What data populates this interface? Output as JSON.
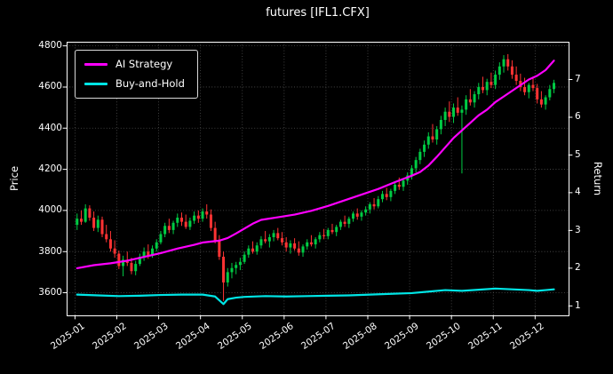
{
  "chart_data": {
    "type": "candlestick",
    "title": "futures [IFL1.CFX]",
    "ylabel_left": "Price",
    "ylabel_right": "Return",
    "legend_position": "upper left",
    "grid": true,
    "x_tick_labels": [
      "2025-01",
      "2025-02",
      "2025-03",
      "2025-04",
      "2025-05",
      "2025-06",
      "2025-07",
      "2025-08",
      "2025-09",
      "2025-10",
      "2025-11",
      "2025-12"
    ],
    "price_ticks": [
      3600,
      3800,
      4000,
      4200,
      4400,
      4600,
      4800
    ],
    "return_ticks": [
      1,
      2,
      3,
      4,
      5,
      6,
      7
    ],
    "price_ylim": [
      3490,
      4820
    ],
    "return_ylim": [
      0.75,
      8.0
    ],
    "candles_per_month": 10,
    "colors": {
      "background": "#000000",
      "frame": "#ffffff",
      "grid": "#4f4f4f",
      "up": "#00cc44",
      "down": "#ff3333"
    },
    "candles": [
      [
        3930,
        3985,
        3905,
        3960
      ],
      [
        3960,
        4000,
        3930,
        3945
      ],
      [
        3945,
        4030,
        3940,
        4010
      ],
      [
        4010,
        4025,
        3950,
        3965
      ],
      [
        3965,
        3995,
        3900,
        3915
      ],
      [
        3915,
        3975,
        3895,
        3955
      ],
      [
        3955,
        3970,
        3870,
        3885
      ],
      [
        3885,
        3930,
        3845,
        3860
      ],
      [
        3860,
        3900,
        3800,
        3815
      ],
      [
        3815,
        3855,
        3770,
        3790
      ],
      [
        3790,
        3805,
        3715,
        3730
      ],
      [
        3730,
        3780,
        3680,
        3760
      ],
      [
        3760,
        3800,
        3730,
        3745
      ],
      [
        3745,
        3770,
        3690,
        3705
      ],
      [
        3705,
        3755,
        3685,
        3740
      ],
      [
        3740,
        3790,
        3730,
        3775
      ],
      [
        3775,
        3820,
        3755,
        3800
      ],
      [
        3800,
        3835,
        3765,
        3780
      ],
      [
        3780,
        3830,
        3770,
        3815
      ],
      [
        3815,
        3860,
        3800,
        3845
      ],
      [
        3845,
        3900,
        3835,
        3885
      ],
      [
        3885,
        3940,
        3870,
        3925
      ],
      [
        3925,
        3960,
        3890,
        3905
      ],
      [
        3905,
        3950,
        3885,
        3940
      ],
      [
        3940,
        3985,
        3920,
        3965
      ],
      [
        3965,
        3990,
        3925,
        3945
      ],
      [
        3945,
        3980,
        3910,
        3920
      ],
      [
        3920,
        3965,
        3905,
        3950
      ],
      [
        3950,
        3995,
        3935,
        3975
      ],
      [
        3975,
        4000,
        3940,
        3960
      ],
      [
        3960,
        4010,
        3945,
        3995
      ],
      [
        3995,
        4030,
        3960,
        3980
      ],
      [
        3980,
        4005,
        3900,
        3915
      ],
      [
        3915,
        3945,
        3840,
        3855
      ],
      [
        3855,
        3880,
        3760,
        3775
      ],
      [
        3775,
        3800,
        3560,
        3650
      ],
      [
        3650,
        3720,
        3630,
        3700
      ],
      [
        3700,
        3745,
        3670,
        3720
      ],
      [
        3720,
        3750,
        3690,
        3735
      ],
      [
        3735,
        3770,
        3710,
        3750
      ],
      [
        3750,
        3800,
        3740,
        3785
      ],
      [
        3785,
        3830,
        3770,
        3815
      ],
      [
        3815,
        3850,
        3790,
        3800
      ],
      [
        3800,
        3845,
        3785,
        3830
      ],
      [
        3830,
        3875,
        3815,
        3860
      ],
      [
        3860,
        3900,
        3840,
        3850
      ],
      [
        3850,
        3885,
        3820,
        3870
      ],
      [
        3870,
        3905,
        3850,
        3890
      ],
      [
        3890,
        3915,
        3855,
        3865
      ],
      [
        3865,
        3895,
        3830,
        3845
      ],
      [
        3845,
        3870,
        3800,
        3820
      ],
      [
        3820,
        3855,
        3790,
        3840
      ],
      [
        3840,
        3865,
        3805,
        3815
      ],
      [
        3815,
        3850,
        3780,
        3795
      ],
      [
        3795,
        3835,
        3775,
        3825
      ],
      [
        3825,
        3860,
        3810,
        3845
      ],
      [
        3845,
        3880,
        3825,
        3835
      ],
      [
        3835,
        3870,
        3815,
        3860
      ],
      [
        3860,
        3895,
        3845,
        3880
      ],
      [
        3880,
        3910,
        3860,
        3875
      ],
      [
        3875,
        3915,
        3860,
        3905
      ],
      [
        3905,
        3935,
        3885,
        3895
      ],
      [
        3895,
        3930,
        3875,
        3920
      ],
      [
        3920,
        3955,
        3905,
        3945
      ],
      [
        3945,
        3975,
        3920,
        3935
      ],
      [
        3935,
        3970,
        3915,
        3960
      ],
      [
        3960,
        3995,
        3945,
        3985
      ],
      [
        3985,
        4010,
        3955,
        3970
      ],
      [
        3970,
        4000,
        3950,
        3990
      ],
      [
        3990,
        4020,
        3975,
        4005
      ],
      [
        4005,
        4040,
        3985,
        4030
      ],
      [
        4030,
        4060,
        4005,
        4020
      ],
      [
        4020,
        4070,
        4010,
        4055
      ],
      [
        4055,
        4095,
        4040,
        4080
      ],
      [
        4080,
        4110,
        4050,
        4065
      ],
      [
        4065,
        4105,
        4045,
        4095
      ],
      [
        4095,
        4140,
        4080,
        4125
      ],
      [
        4125,
        4160,
        4100,
        4115
      ],
      [
        4115,
        4155,
        4095,
        4145
      ],
      [
        4145,
        4185,
        4125,
        4170
      ],
      [
        4170,
        4220,
        4150,
        4205
      ],
      [
        4205,
        4260,
        4185,
        4245
      ],
      [
        4245,
        4300,
        4225,
        4285
      ],
      [
        4285,
        4340,
        4260,
        4320
      ],
      [
        4320,
        4380,
        4300,
        4360
      ],
      [
        4360,
        4420,
        4330,
        4345
      ],
      [
        4345,
        4410,
        4320,
        4395
      ],
      [
        4395,
        4460,
        4370,
        4440
      ],
      [
        4440,
        4500,
        4410,
        4480
      ],
      [
        4480,
        4530,
        4430,
        4455
      ],
      [
        4455,
        4520,
        4425,
        4500
      ],
      [
        4500,
        4550,
        4460,
        4475
      ],
      [
        4475,
        4510,
        4180,
        4490
      ],
      [
        4490,
        4560,
        4465,
        4540
      ],
      [
        4540,
        4590,
        4510,
        4525
      ],
      [
        4525,
        4580,
        4500,
        4565
      ],
      [
        4565,
        4620,
        4540,
        4600
      ],
      [
        4600,
        4650,
        4570,
        4585
      ],
      [
        4585,
        4640,
        4560,
        4625
      ],
      [
        4625,
        4670,
        4595,
        4610
      ],
      [
        4610,
        4680,
        4590,
        4660
      ],
      [
        4660,
        4720,
        4635,
        4700
      ],
      [
        4700,
        4755,
        4670,
        4735
      ],
      [
        4735,
        4760,
        4680,
        4700
      ],
      [
        4700,
        4730,
        4640,
        4660
      ],
      [
        4660,
        4700,
        4610,
        4630
      ],
      [
        4630,
        4665,
        4580,
        4600
      ],
      [
        4600,
        4645,
        4560,
        4575
      ],
      [
        4575,
        4620,
        4545,
        4610
      ],
      [
        4610,
        4650,
        4580,
        4595
      ],
      [
        4595,
        4615,
        4520,
        4540
      ],
      [
        4540,
        4580,
        4500,
        4515
      ],
      [
        4515,
        4560,
        4490,
        4550
      ],
      [
        4550,
        4610,
        4535,
        4590
      ],
      [
        4590,
        4635,
        4570,
        4620
      ]
    ],
    "series": [
      {
        "name": "AI Strategy",
        "color": "#ff00ff",
        "axis": "return",
        "points": [
          [
            0,
            2.0
          ],
          [
            4,
            2.08
          ],
          [
            8,
            2.13
          ],
          [
            12,
            2.2
          ],
          [
            16,
            2.3
          ],
          [
            20,
            2.4
          ],
          [
            24,
            2.52
          ],
          [
            28,
            2.62
          ],
          [
            30,
            2.68
          ],
          [
            34,
            2.73
          ],
          [
            36,
            2.8
          ],
          [
            38,
            2.92
          ],
          [
            40,
            3.05
          ],
          [
            42,
            3.18
          ],
          [
            44,
            3.28
          ],
          [
            48,
            3.35
          ],
          [
            52,
            3.42
          ],
          [
            56,
            3.52
          ],
          [
            60,
            3.65
          ],
          [
            64,
            3.8
          ],
          [
            68,
            3.95
          ],
          [
            72,
            4.1
          ],
          [
            76,
            4.28
          ],
          [
            80,
            4.45
          ],
          [
            82,
            4.55
          ],
          [
            84,
            4.72
          ],
          [
            86,
            4.95
          ],
          [
            88,
            5.2
          ],
          [
            90,
            5.45
          ],
          [
            92,
            5.65
          ],
          [
            94,
            5.85
          ],
          [
            96,
            6.05
          ],
          [
            98,
            6.2
          ],
          [
            100,
            6.4
          ],
          [
            102,
            6.55
          ],
          [
            104,
            6.7
          ],
          [
            106,
            6.85
          ],
          [
            108,
            7.0
          ],
          [
            110,
            7.1
          ],
          [
            112,
            7.25
          ],
          [
            114,
            7.5
          ]
        ]
      },
      {
        "name": "Buy-and-Hold",
        "color": "#00e5e5",
        "axis": "return",
        "points": [
          [
            0,
            1.3
          ],
          [
            5,
            1.28
          ],
          [
            10,
            1.26
          ],
          [
            15,
            1.27
          ],
          [
            20,
            1.29
          ],
          [
            25,
            1.3
          ],
          [
            30,
            1.3
          ],
          [
            33,
            1.25
          ],
          [
            35,
            1.05
          ],
          [
            36,
            1.18
          ],
          [
            38,
            1.22
          ],
          [
            40,
            1.24
          ],
          [
            45,
            1.26
          ],
          [
            50,
            1.25
          ],
          [
            55,
            1.26
          ],
          [
            60,
            1.27
          ],
          [
            65,
            1.28
          ],
          [
            70,
            1.3
          ],
          [
            75,
            1.32
          ],
          [
            80,
            1.34
          ],
          [
            84,
            1.38
          ],
          [
            88,
            1.42
          ],
          [
            92,
            1.4
          ],
          [
            96,
            1.43
          ],
          [
            100,
            1.46
          ],
          [
            104,
            1.44
          ],
          [
            108,
            1.42
          ],
          [
            110,
            1.4
          ],
          [
            112,
            1.42
          ],
          [
            114,
            1.44
          ]
        ]
      }
    ]
  }
}
